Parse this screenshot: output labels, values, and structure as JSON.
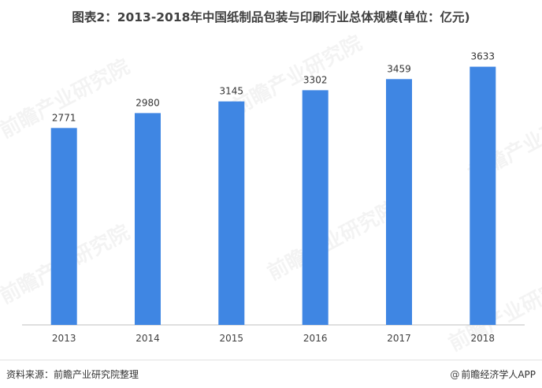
{
  "title": "图表2：2013-2018年中国纸制品包装与印刷行业总体规模(单位：亿元)",
  "footer": {
    "source": "资料来源：前瞻产业研究院整理",
    "brand_icon": "@",
    "brand": "前瞻经济学人APP"
  },
  "watermark": "前瞻产业研究院",
  "colors": {
    "bar": "#3f86e3",
    "axis": "#bfbfbf"
  },
  "chart_data": {
    "type": "bar",
    "title": "图表2：2013-2018年中国纸制品包装与印刷行业总体规模(单位：亿元)",
    "categories": [
      "2013",
      "2014",
      "2015",
      "2016",
      "2017",
      "2018"
    ],
    "values": [
      2771,
      2980,
      3145,
      3302,
      3459,
      3633
    ],
    "xlabel": "",
    "ylabel": "",
    "unit": "亿元",
    "ylim": [
      0,
      4050
    ],
    "grid": false,
    "legend": "none"
  }
}
